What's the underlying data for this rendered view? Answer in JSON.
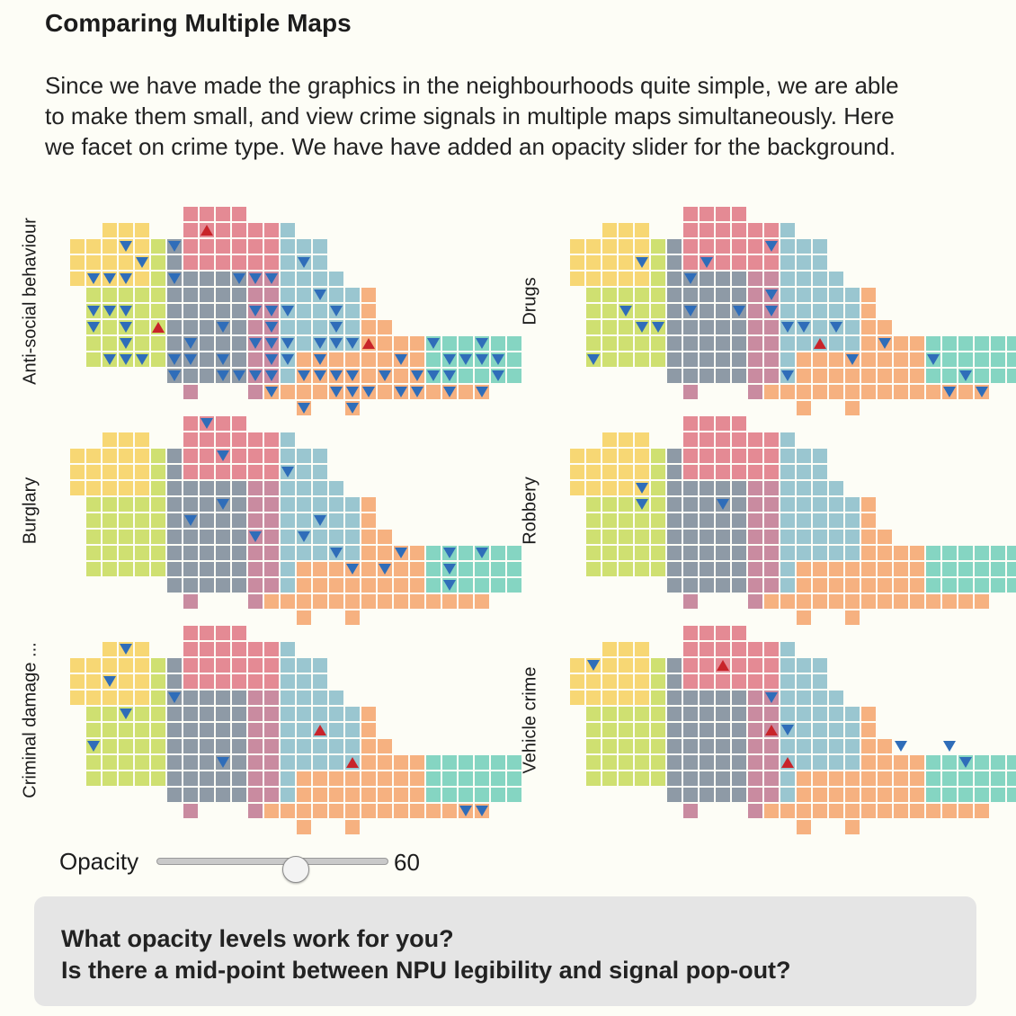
{
  "page": {
    "title": "Comparing Multiple Maps",
    "intro": [
      "Since we have made the graphics in the neighbourhoods quite simple, we are able",
      "to make them small, and view crime signals in multiple maps simultaneously. Here",
      "we facet on crime type. We have have added an opacity slider for the background."
    ]
  },
  "panels": [
    {
      "label": "Anti-social behaviour"
    },
    {
      "label": "Drugs"
    },
    {
      "label": "Burglary"
    },
    {
      "label": "Robbery"
    },
    {
      "label": "Criminal damage ..."
    },
    {
      "label": "Vehicle crime"
    }
  ],
  "slider": {
    "label": "Opacity",
    "value": 60,
    "value_text": "60",
    "min": 0,
    "max": 100
  },
  "question": {
    "line1": "What opacity levels work for you?",
    "line2": "Is there a mid-point between NPU legibility and signal pop-out?"
  },
  "colors": {
    "background": "#fdfdf6",
    "region_palette": [
      "#f7d774",
      "#cfe071",
      "#e48a94",
      "#8e9aa6",
      "#c98ba0",
      "#9ac6d0",
      "#f6b180",
      "#85d5c2"
    ],
    "decrease_marker": "#2f6db9",
    "increase_marker": "#c8242a"
  }
}
